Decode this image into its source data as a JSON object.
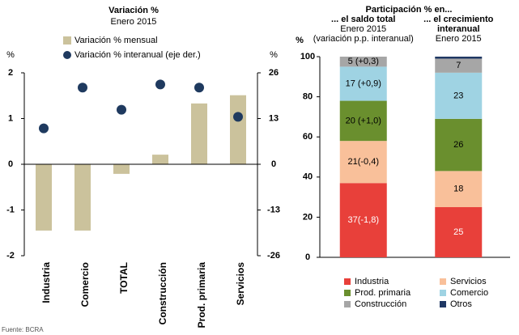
{
  "chart_data": [
    {
      "type": "combo",
      "title": "Variación %",
      "subtitle": "Enero 2015",
      "y_label": "%",
      "y2_label": "%",
      "categories": [
        "Industria",
        "Comercio",
        "TOTAL",
        "Construcción",
        "Prod. primaria",
        "Servicios"
      ],
      "series": [
        {
          "name": "Variación % mensual",
          "type": "bar",
          "axis": "y",
          "color": "#cbc29c",
          "values": [
            -1.45,
            -1.45,
            -0.21,
            0.21,
            1.33,
            1.51
          ]
        },
        {
          "name": "Variación % interanual (eje der.)",
          "type": "scatter",
          "axis": "y2",
          "color": "#1f3a5f",
          "values": [
            10.2,
            21.8,
            15.5,
            22.7,
            21.8,
            13.5
          ]
        }
      ],
      "ylim": [
        -2,
        2
      ],
      "yticks": [
        -2,
        -1,
        0,
        1,
        2
      ],
      "y2lim": [
        -26,
        26
      ],
      "y2ticks": [
        -26,
        -13,
        0,
        13,
        26
      ],
      "source": "Fuente: BCRA"
    },
    {
      "type": "stacked_bar",
      "title": "Participación % en...",
      "y_label": "%",
      "categories": [
        "... el saldo total",
        "... el crecimiento interanual"
      ],
      "category_notes": [
        [
          "Enero 2015",
          "(variación p.p. interanual)"
        ],
        [
          "Enero 2015"
        ]
      ],
      "series": [
        {
          "name": "Industria",
          "color": "#e8403a",
          "label_color": "#ffffff",
          "values": [
            37,
            25
          ],
          "value_labels": [
            "37(-1,8)",
            "25"
          ]
        },
        {
          "name": "Servicios",
          "color": "#f9c09a",
          "label_color": "#000000",
          "values": [
            21,
            18
          ],
          "value_labels": [
            "21(-0,4)",
            "18"
          ]
        },
        {
          "name": "Prod. primaria",
          "color": "#6a8f2e",
          "label_color": "#000000",
          "values": [
            20,
            26
          ],
          "value_labels": [
            "20 (+1,0)",
            "26"
          ]
        },
        {
          "name": "Comercio",
          "color": "#9fd3e3",
          "label_color": "#000000",
          "values": [
            17,
            23
          ],
          "value_labels": [
            "17 (+0,9)",
            "23"
          ]
        },
        {
          "name": "Construcción",
          "color": "#a6a6a6",
          "label_color": "#000000",
          "values": [
            5,
            7
          ],
          "value_labels": [
            "5 (+0,3)",
            "7"
          ]
        },
        {
          "name": "Otros",
          "color": "#1f3864",
          "values": [
            0,
            1
          ]
        }
      ],
      "ylim": [
        0,
        100
      ],
      "yticks": [
        0,
        20,
        40,
        60,
        80,
        100
      ]
    }
  ]
}
